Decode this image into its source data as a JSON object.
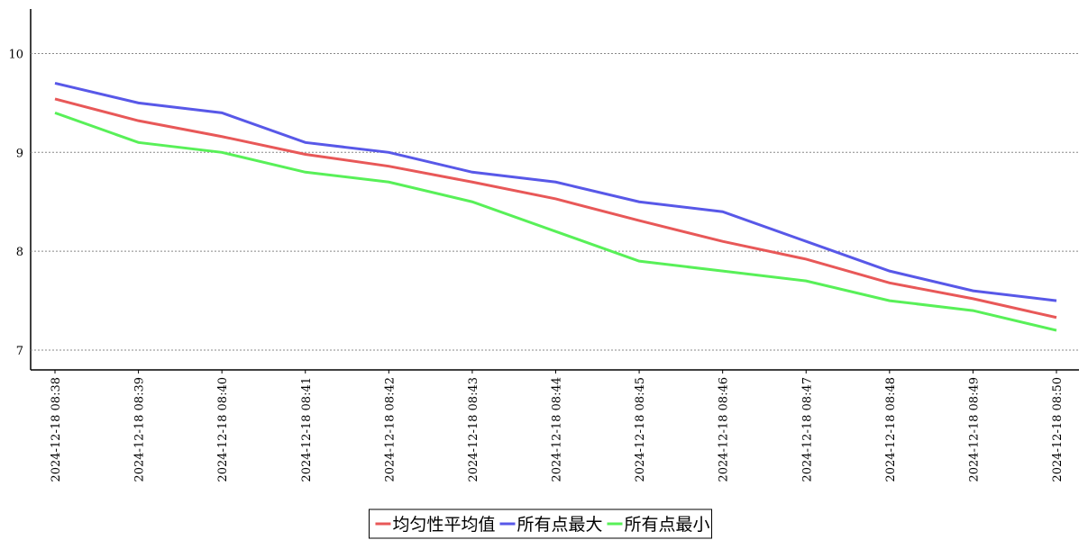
{
  "chart_data": {
    "type": "line",
    "categories": [
      "2024-12-18 08:38",
      "2024-12-18 08:39",
      "2024-12-18 08:40",
      "2024-12-18 08:41",
      "2024-12-18 08:42",
      "2024-12-18 08:43",
      "2024-12-18 08:44",
      "2024-12-18 08:45",
      "2024-12-18 08:46",
      "2024-12-18 08:47",
      "2024-12-18 08:48",
      "2024-12-18 08:49",
      "2024-12-18 08:50"
    ],
    "series": [
      {
        "name": "均匀性平均值",
        "color": "#e85858",
        "values": [
          9.54,
          9.32,
          9.16,
          8.98,
          8.86,
          8.7,
          8.53,
          8.31,
          8.1,
          7.92,
          7.68,
          7.52,
          7.33
        ]
      },
      {
        "name": "所有点最大",
        "color": "#5858e8",
        "values": [
          9.7,
          9.5,
          9.4,
          9.1,
          9.0,
          8.8,
          8.7,
          8.5,
          8.4,
          8.1,
          7.8,
          7.6,
          7.5
        ]
      },
      {
        "name": "所有点最小",
        "color": "#58f058",
        "values": [
          9.4,
          9.1,
          9.0,
          8.8,
          8.7,
          8.5,
          8.2,
          7.9,
          7.8,
          7.7,
          7.5,
          7.4,
          7.2
        ]
      }
    ],
    "ylim": [
      6.8,
      10.45
    ],
    "yticks": [
      7,
      8,
      9,
      10
    ],
    "grid": true,
    "legend": "bottom"
  }
}
